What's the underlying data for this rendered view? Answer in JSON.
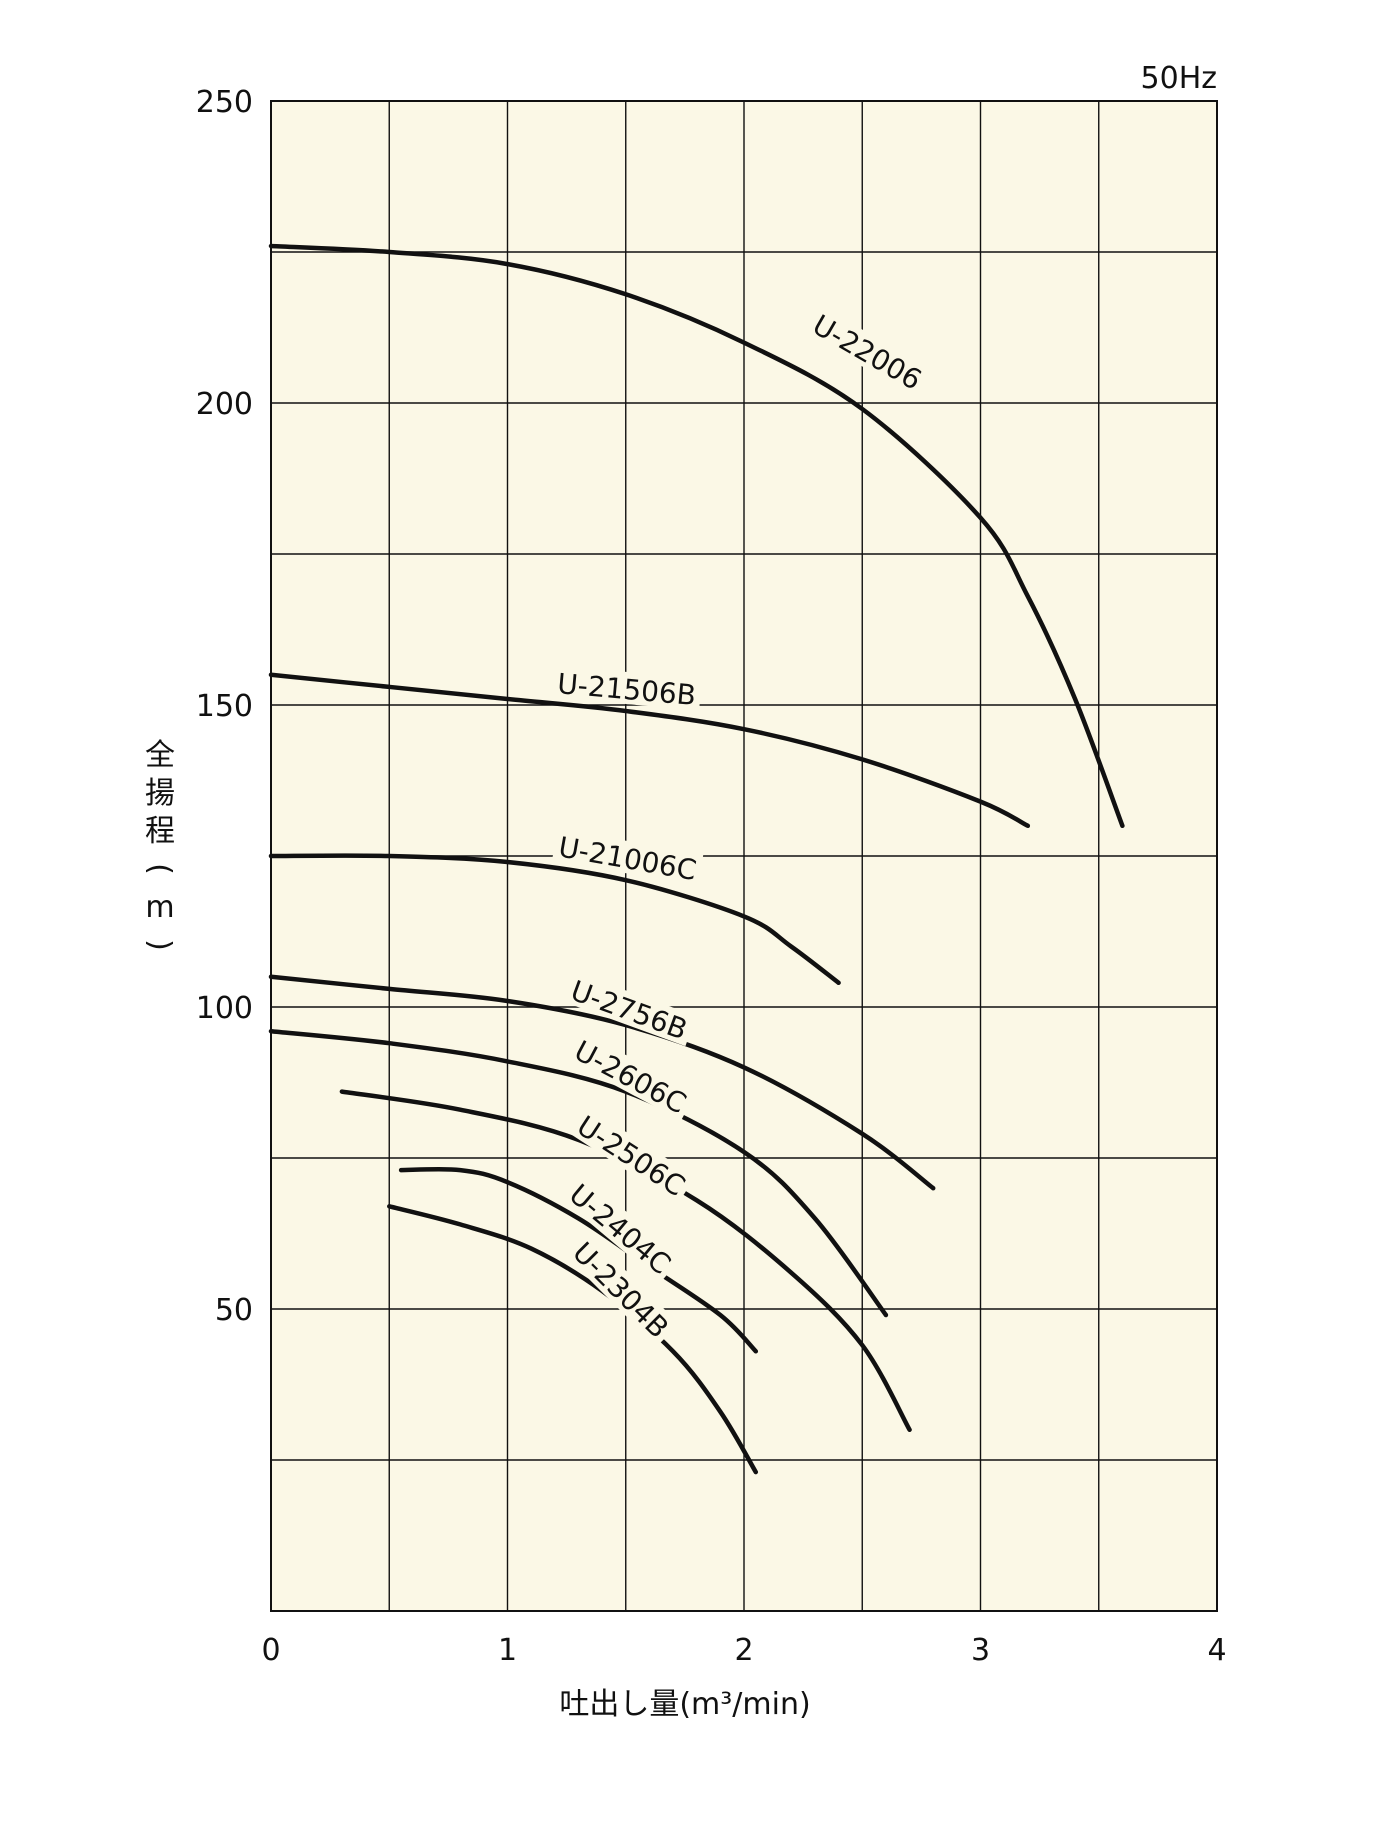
{
  "chart_data": {
    "type": "line",
    "title": "",
    "frequency_label": "50Hz",
    "xlabel": "吐出し量(m³/min)",
    "ylabel_chars": [
      "全",
      "揚",
      "程",
      "(",
      "m",
      ")"
    ],
    "xlim": [
      0,
      4
    ],
    "ylim": [
      0,
      250
    ],
    "x_major_ticks": [
      0,
      1,
      2,
      3,
      4
    ],
    "x_tick_labels": [
      "0",
      "1",
      "2",
      "3",
      "4"
    ],
    "x_grid_step": 0.5,
    "y_major_ticks": [
      50,
      100,
      150,
      200,
      250
    ],
    "y_tick_labels": [
      "50",
      "100",
      "150",
      "200",
      "250"
    ],
    "y_grid_step": 25,
    "grid": true,
    "background_color": "#fbf8e6",
    "line_color": "#111111",
    "series": [
      {
        "name": "U-22006",
        "x": [
          0,
          0.5,
          1.0,
          1.5,
          2.0,
          2.5,
          3.0,
          3.2,
          3.4,
          3.6
        ],
        "y": [
          226,
          225,
          223,
          218,
          210,
          199,
          181,
          168,
          151,
          130
        ],
        "label_at": [
          2.5,
          207
        ],
        "label_angle": 30
      },
      {
        "name": "U-21506B",
        "x": [
          0,
          0.5,
          1.0,
          1.5,
          2.0,
          2.5,
          3.0,
          3.2
        ],
        "y": [
          155,
          153,
          151,
          149,
          146,
          141,
          134,
          130
        ],
        "label_at": [
          1.5,
          151
        ],
        "label_angle": 5
      },
      {
        "name": "U-21006C",
        "x": [
          0,
          0.5,
          1.0,
          1.5,
          2.0,
          2.2,
          2.4
        ],
        "y": [
          125,
          125,
          124,
          121,
          115,
          110,
          104
        ],
        "label_at": [
          1.5,
          123
        ],
        "label_angle": 10
      },
      {
        "name": "U-2756B",
        "x": [
          0,
          0.5,
          1.0,
          1.5,
          2.0,
          2.5,
          2.8
        ],
        "y": [
          105,
          103,
          101,
          97,
          90,
          79,
          70
        ],
        "label_at": [
          1.5,
          98
        ],
        "label_angle": 20
      },
      {
        "name": "U-2606C",
        "x": [
          0,
          0.5,
          1.0,
          1.5,
          2.0,
          2.3,
          2.6
        ],
        "y": [
          96,
          94,
          91,
          86,
          76,
          65,
          49
        ],
        "label_at": [
          1.5,
          87
        ],
        "label_angle": 28
      },
      {
        "name": "U-2506C",
        "x": [
          0.3,
          0.8,
          1.3,
          1.8,
          2.2,
          2.5,
          2.7
        ],
        "y": [
          86,
          83,
          78,
          68,
          56,
          44,
          30
        ],
        "label_at": [
          1.5,
          74
        ],
        "label_angle": 33
      },
      {
        "name": "U-2404C",
        "x": [
          0.55,
          0.8,
          1.0,
          1.3,
          1.6,
          1.9,
          2.05
        ],
        "y": [
          73,
          73,
          71,
          65,
          57,
          49,
          43
        ],
        "label_at": [
          1.45,
          62
        ],
        "label_angle": 40
      },
      {
        "name": "U-2304B",
        "x": [
          0.5,
          0.8,
          1.1,
          1.4,
          1.7,
          1.9,
          2.05
        ],
        "y": [
          67,
          64,
          60,
          53,
          43,
          33,
          23
        ],
        "label_at": [
          1.45,
          52
        ],
        "label_angle": 45
      }
    ]
  }
}
